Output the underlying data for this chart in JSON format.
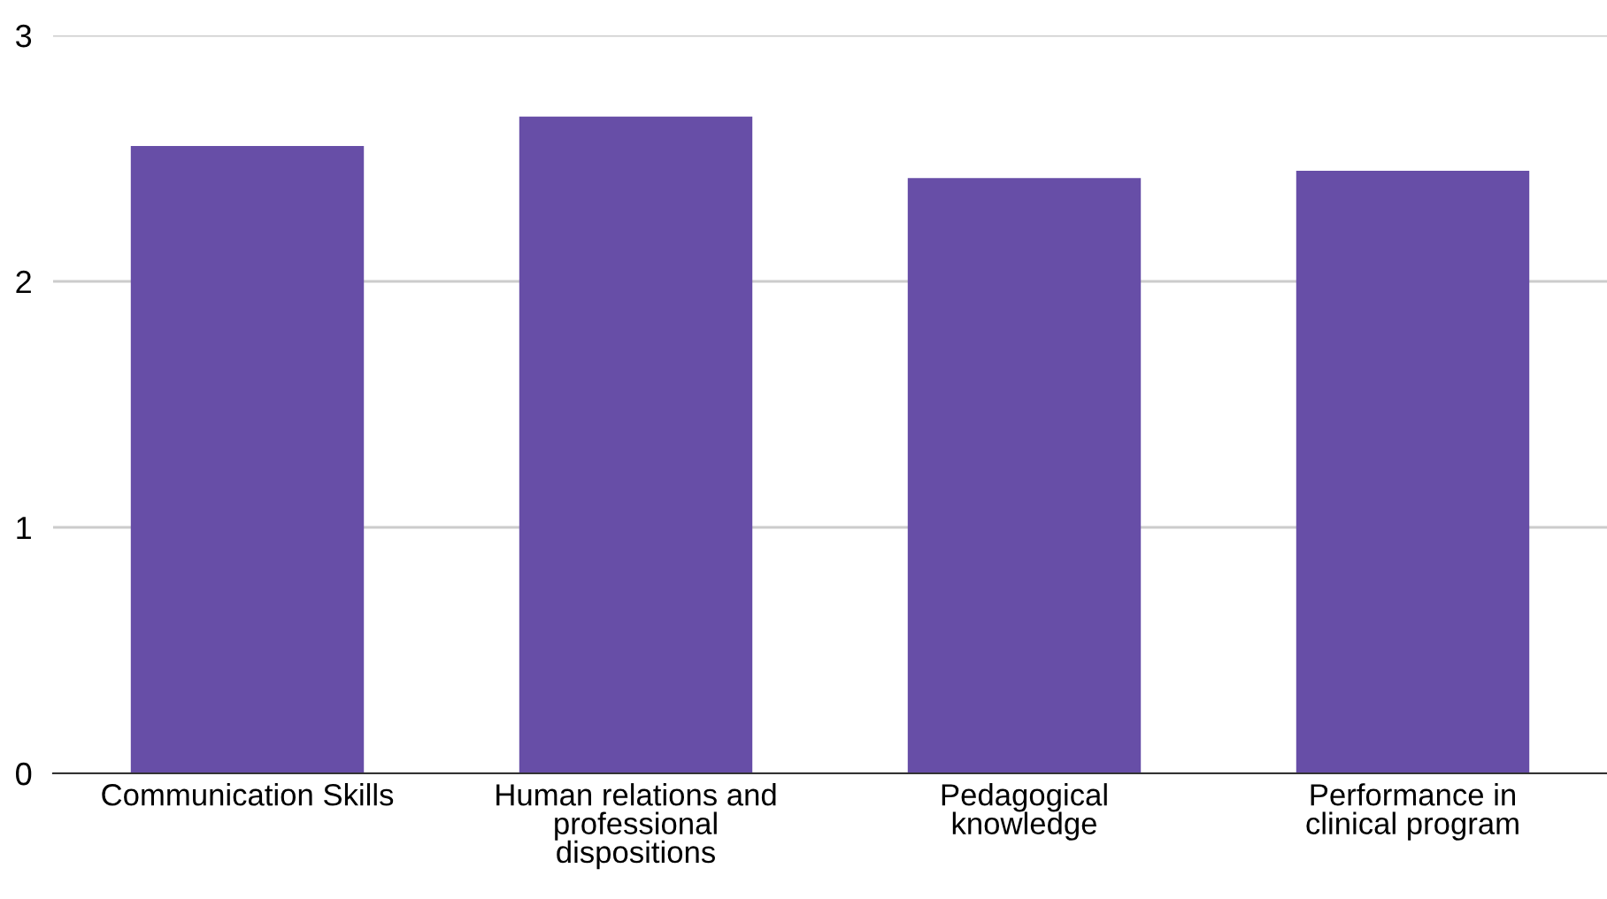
{
  "chart_data": {
    "type": "bar",
    "categories": [
      "Communication Skills",
      "Human relations and professional dispositions",
      "Pedagogical knowledge",
      "Performance in clinical program"
    ],
    "values": [
      2.55,
      2.67,
      2.42,
      2.45
    ],
    "color": "#674ea7",
    "ylim": [
      0,
      3
    ],
    "yticks": [
      0,
      1,
      2,
      3
    ],
    "grid": "y",
    "legend": false
  }
}
